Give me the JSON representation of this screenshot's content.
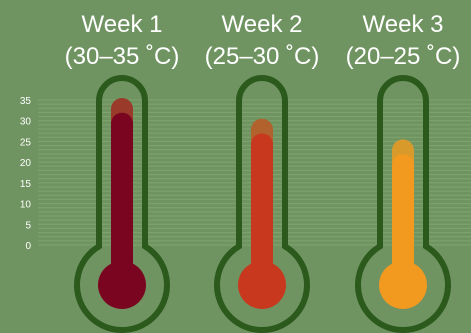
{
  "colors": {
    "background": "#6f9461",
    "outline": "#2b5a1c",
    "gridline": "#8fb07d",
    "text": "#ffffff"
  },
  "chart_data": {
    "type": "bar",
    "categories": [
      "Week 1",
      "Week 2",
      "Week 3"
    ],
    "range_labels": [
      "(30–35 ˚C)",
      "(25–30 ˚C)",
      "(20–25 ˚C)"
    ],
    "yticks": [
      0,
      5,
      10,
      15,
      20,
      25,
      30,
      35
    ],
    "ylim": [
      0,
      35
    ],
    "grid": true,
    "series": [
      {
        "values": [
          30,
          25,
          20
        ],
        "colors": [
          "#7a0520",
          "#c8381e",
          "#f2991f"
        ]
      },
      {
        "values": [
          35,
          30,
          25
        ],
        "colors": [
          "#9a3a2a",
          "#b2622c",
          "#d99a2c"
        ]
      }
    ]
  }
}
